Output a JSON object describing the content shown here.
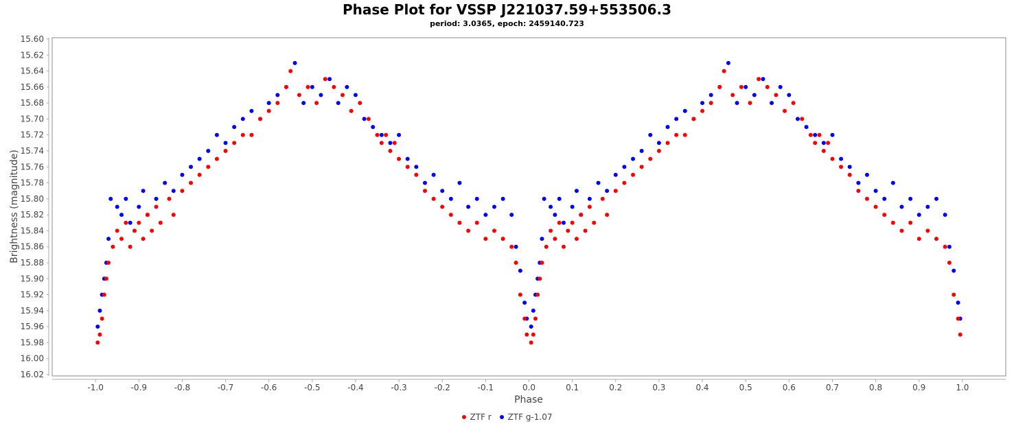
{
  "chart_data": {
    "type": "scatter",
    "title": "Phase Plot for VSSP J221037.59+553506.3",
    "subtitle": "period: 3.0365, epoch: 2459140.723",
    "xlabel": "Phase",
    "ylabel": "Brightness (magnitude)",
    "xlim": [
      -1.1,
      1.1
    ],
    "ylim": [
      15.6,
      16.02
    ],
    "y_inverted": true,
    "xticks": [
      "-1.0",
      "-0.9",
      "-0.8",
      "-0.7",
      "-0.6",
      "-0.5",
      "-0.4",
      "-0.3",
      "-0.2",
      "-0.1",
      "0.0",
      "0.1",
      "0.2",
      "0.3",
      "0.4",
      "0.5",
      "0.6",
      "0.7",
      "0.8",
      "0.9",
      "1.0"
    ],
    "yticks": [
      "15.60",
      "15.62",
      "15.64",
      "15.66",
      "15.68",
      "15.70",
      "15.72",
      "15.74",
      "15.76",
      "15.78",
      "15.80",
      "15.82",
      "15.84",
      "15.86",
      "15.88",
      "15.90",
      "15.92",
      "15.94",
      "15.96",
      "15.98",
      "16.00",
      "16.02"
    ],
    "legend_position": "bottom-center",
    "phase_repeated": "points shown at phase and phase-1",
    "series": [
      {
        "name": "ZTF g-1.07",
        "color": "#0000ff",
        "points": [
          [
            0.005,
            15.96
          ],
          [
            0.01,
            15.94
          ],
          [
            0.015,
            15.92
          ],
          [
            0.02,
            15.9
          ],
          [
            0.025,
            15.88
          ],
          [
            0.03,
            15.85
          ],
          [
            0.035,
            15.8
          ],
          [
            0.05,
            15.81
          ],
          [
            0.06,
            15.82
          ],
          [
            0.07,
            15.8
          ],
          [
            0.08,
            15.83
          ],
          [
            0.1,
            15.81
          ],
          [
            0.11,
            15.79
          ],
          [
            0.12,
            15.82
          ],
          [
            0.14,
            15.8
          ],
          [
            0.16,
            15.78
          ],
          [
            0.18,
            15.79
          ],
          [
            0.2,
            15.77
          ],
          [
            0.22,
            15.76
          ],
          [
            0.24,
            15.75
          ],
          [
            0.26,
            15.74
          ],
          [
            0.28,
            15.72
          ],
          [
            0.3,
            15.73
          ],
          [
            0.32,
            15.71
          ],
          [
            0.34,
            15.7
          ],
          [
            0.36,
            15.69
          ],
          [
            0.38,
            15.7
          ],
          [
            0.4,
            15.68
          ],
          [
            0.42,
            15.67
          ],
          [
            0.44,
            15.66
          ],
          [
            0.46,
            15.63
          ],
          [
            0.48,
            15.68
          ],
          [
            0.5,
            15.66
          ],
          [
            0.52,
            15.67
          ],
          [
            0.54,
            15.65
          ],
          [
            0.56,
            15.68
          ],
          [
            0.58,
            15.66
          ],
          [
            0.6,
            15.67
          ],
          [
            0.62,
            15.7
          ],
          [
            0.64,
            15.71
          ],
          [
            0.66,
            15.72
          ],
          [
            0.68,
            15.73
          ],
          [
            0.7,
            15.72
          ],
          [
            0.72,
            15.75
          ],
          [
            0.74,
            15.76
          ],
          [
            0.76,
            15.78
          ],
          [
            0.78,
            15.77
          ],
          [
            0.8,
            15.79
          ],
          [
            0.82,
            15.8
          ],
          [
            0.84,
            15.78
          ],
          [
            0.86,
            15.81
          ],
          [
            0.88,
            15.8
          ],
          [
            0.9,
            15.82
          ],
          [
            0.92,
            15.81
          ],
          [
            0.94,
            15.8
          ],
          [
            0.96,
            15.82
          ],
          [
            0.97,
            15.86
          ],
          [
            0.98,
            15.89
          ],
          [
            0.99,
            15.93
          ],
          [
            0.995,
            15.95
          ]
        ]
      },
      {
        "name": "ZTF r",
        "color": "#ff0000",
        "points": [
          [
            0.005,
            15.98
          ],
          [
            0.01,
            15.97
          ],
          [
            0.015,
            15.95
          ],
          [
            0.02,
            15.92
          ],
          [
            0.025,
            15.9
          ],
          [
            0.03,
            15.88
          ],
          [
            0.04,
            15.86
          ],
          [
            0.05,
            15.84
          ],
          [
            0.06,
            15.85
          ],
          [
            0.07,
            15.83
          ],
          [
            0.08,
            15.86
          ],
          [
            0.09,
            15.84
          ],
          [
            0.1,
            15.83
          ],
          [
            0.11,
            15.85
          ],
          [
            0.12,
            15.82
          ],
          [
            0.13,
            15.84
          ],
          [
            0.14,
            15.81
          ],
          [
            0.15,
            15.83
          ],
          [
            0.17,
            15.8
          ],
          [
            0.18,
            15.82
          ],
          [
            0.2,
            15.79
          ],
          [
            0.22,
            15.78
          ],
          [
            0.24,
            15.77
          ],
          [
            0.26,
            15.76
          ],
          [
            0.28,
            15.75
          ],
          [
            0.3,
            15.74
          ],
          [
            0.32,
            15.73
          ],
          [
            0.34,
            15.72
          ],
          [
            0.36,
            15.72
          ],
          [
            0.38,
            15.7
          ],
          [
            0.4,
            15.69
          ],
          [
            0.42,
            15.68
          ],
          [
            0.44,
            15.66
          ],
          [
            0.45,
            15.64
          ],
          [
            0.47,
            15.67
          ],
          [
            0.49,
            15.66
          ],
          [
            0.51,
            15.68
          ],
          [
            0.53,
            15.65
          ],
          [
            0.55,
            15.66
          ],
          [
            0.57,
            15.67
          ],
          [
            0.59,
            15.69
          ],
          [
            0.61,
            15.68
          ],
          [
            0.63,
            15.7
          ],
          [
            0.65,
            15.72
          ],
          [
            0.66,
            15.73
          ],
          [
            0.67,
            15.72
          ],
          [
            0.68,
            15.74
          ],
          [
            0.69,
            15.73
          ],
          [
            0.7,
            15.75
          ],
          [
            0.72,
            15.76
          ],
          [
            0.74,
            15.77
          ],
          [
            0.76,
            15.79
          ],
          [
            0.78,
            15.8
          ],
          [
            0.8,
            15.81
          ],
          [
            0.82,
            15.82
          ],
          [
            0.84,
            15.83
          ],
          [
            0.86,
            15.84
          ],
          [
            0.88,
            15.83
          ],
          [
            0.9,
            15.85
          ],
          [
            0.92,
            15.84
          ],
          [
            0.94,
            15.85
          ],
          [
            0.96,
            15.86
          ],
          [
            0.97,
            15.88
          ],
          [
            0.98,
            15.92
          ],
          [
            0.99,
            15.95
          ],
          [
            0.995,
            15.97
          ]
        ]
      }
    ]
  },
  "legend": {
    "items": [
      {
        "label": "ZTF r"
      },
      {
        "label": "ZTF g-1.07"
      }
    ]
  }
}
